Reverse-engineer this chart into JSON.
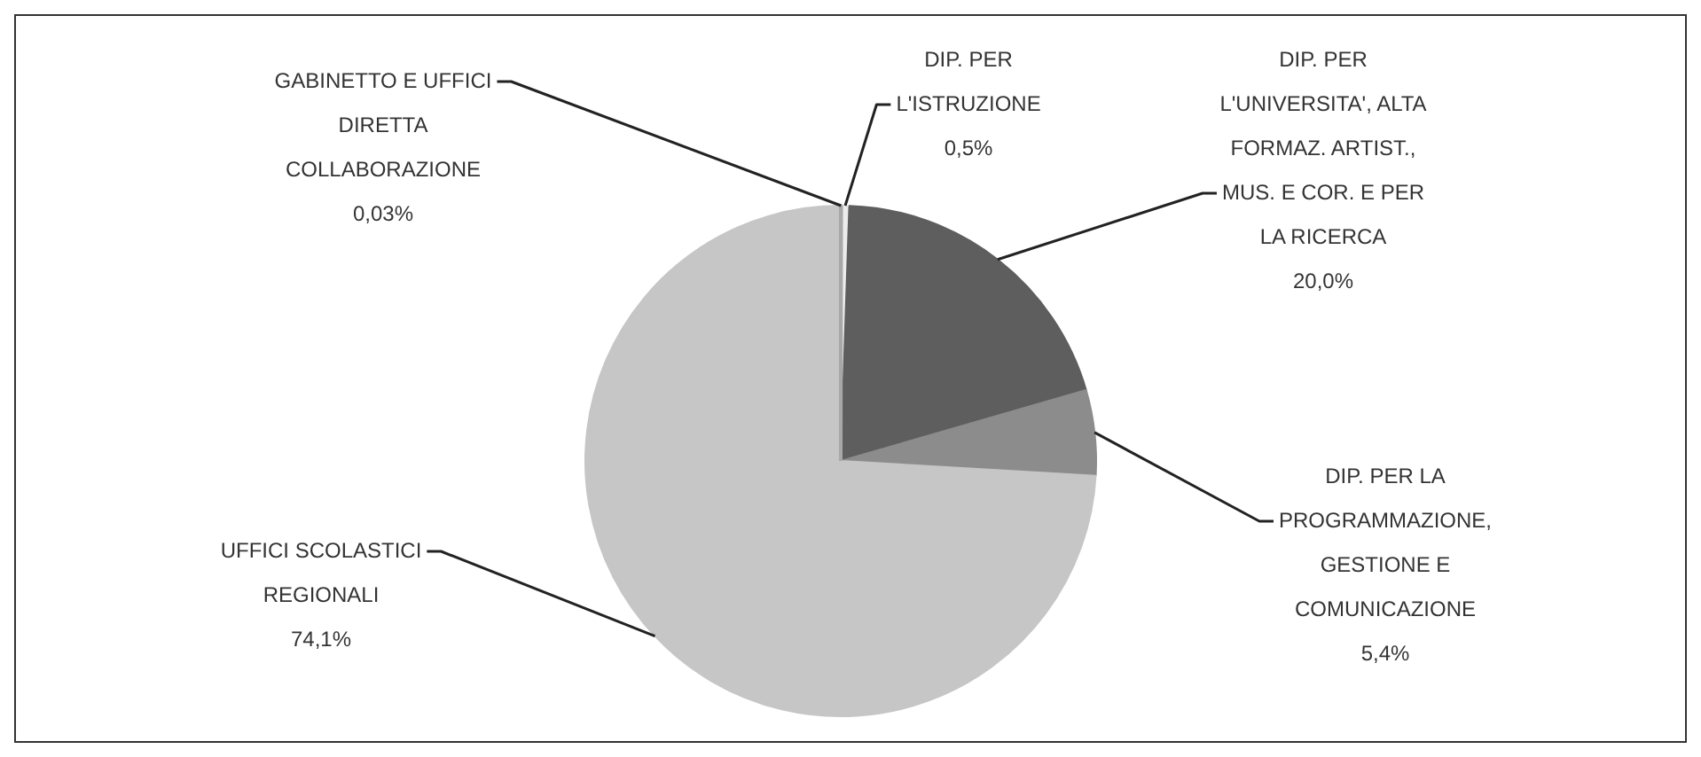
{
  "chart_data": {
    "type": "pie",
    "categories": [
      "GABINETTO E UFFICI DIRETTA COLLABORAZIONE",
      "DIP. PER L'ISTRUZIONE",
      "DIP. PER L'UNIVERSITA', ALTA FORMAZ. ARTIST., MUS. E COR. E PER LA RICERCA",
      "DIP. PER LA PROGRAMMAZIONE, GESTIONE E COMUNICAZIONE",
      "UFFICI SCOLASTICI REGIONALI"
    ],
    "values": [
      0.03,
      0.5,
      20.0,
      5.4,
      74.1
    ],
    "value_labels": [
      "0,03%",
      "0,5%",
      "20,0%",
      "5,4%",
      "74,1%"
    ],
    "colors": [
      "#a8a8a8",
      "#ececec",
      "#5e5e5e",
      "#8c8c8c",
      "#c6c6c6"
    ],
    "legend": false
  }
}
